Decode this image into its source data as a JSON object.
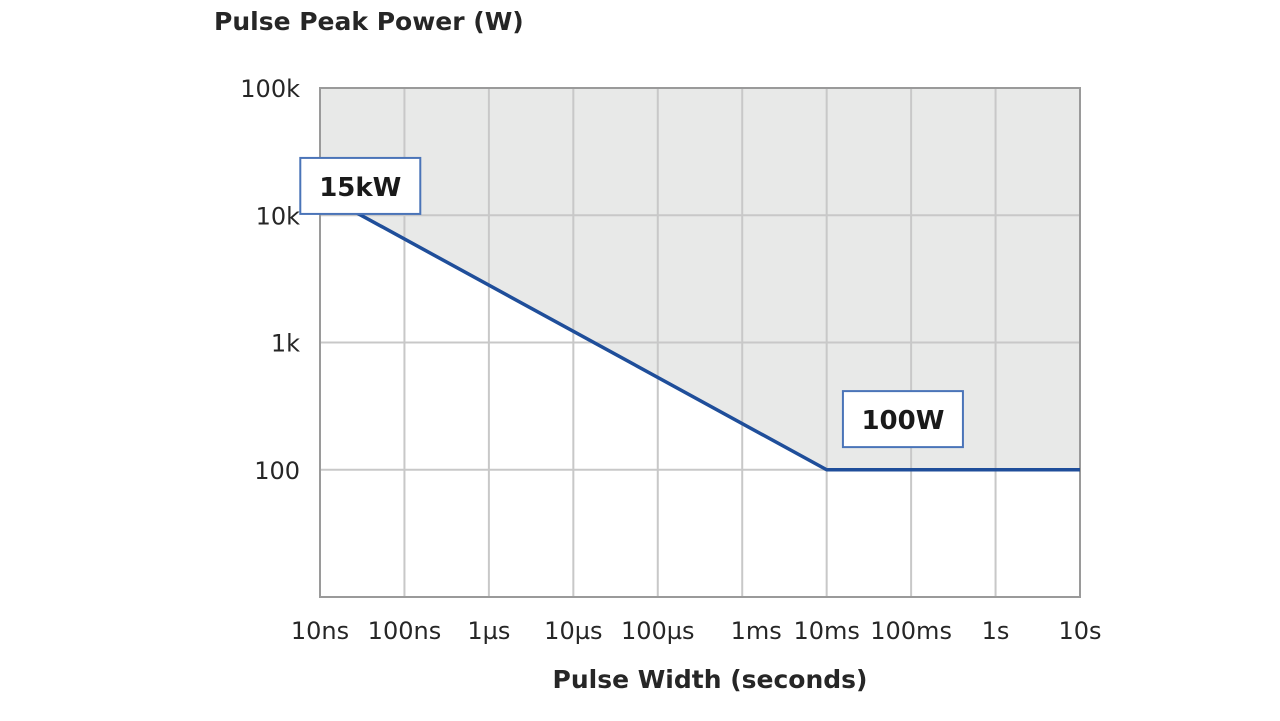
{
  "chart_data": {
    "type": "line",
    "title": "",
    "ylabel": "Pulse Peak Power (W)",
    "xlabel": "Pulse Width (seconds)",
    "x_scale": "log",
    "y_scale": "log",
    "xlim": [
      1e-08,
      10
    ],
    "ylim": [
      10,
      100000
    ],
    "grid": true,
    "x_ticks": [
      {
        "value": 1e-08,
        "label": "10ns"
      },
      {
        "value": 1e-07,
        "label": "100ns"
      },
      {
        "value": 1e-06,
        "label": "1µs"
      },
      {
        "value": 1e-05,
        "label": "10µs"
      },
      {
        "value": 0.0001,
        "label": "100µs"
      },
      {
        "value": 0.001,
        "label": "1ms"
      },
      {
        "value": 0.01,
        "label": "10ms"
      },
      {
        "value": 0.1,
        "label": "100ms"
      },
      {
        "value": 1,
        "label": "1s"
      },
      {
        "value": 10,
        "label": "10s"
      }
    ],
    "y_ticks": [
      {
        "value": 100,
        "label": "100"
      },
      {
        "value": 1000,
        "label": "1k"
      },
      {
        "value": 10000,
        "label": "10k"
      },
      {
        "value": 100000,
        "label": "100k"
      }
    ],
    "series": [
      {
        "points": [
          [
            1e-08,
            15000
          ],
          [
            0.01,
            100
          ],
          [
            10,
            100
          ]
        ],
        "color": "#1f4e9a"
      }
    ],
    "shaded_region": {
      "description_values": "area above curve",
      "fill": "#e8e9e8"
    },
    "annotations": [
      {
        "text": "15kW",
        "x": 3e-08,
        "y": 17000
      },
      {
        "text": "100W",
        "x": 0.08,
        "y": 250
      }
    ],
    "colors": {
      "grid": "#c8c8c8",
      "axis": "#9a9a9a",
      "line": "#1f4e9a",
      "label_box_border": "#4a74b8"
    }
  }
}
